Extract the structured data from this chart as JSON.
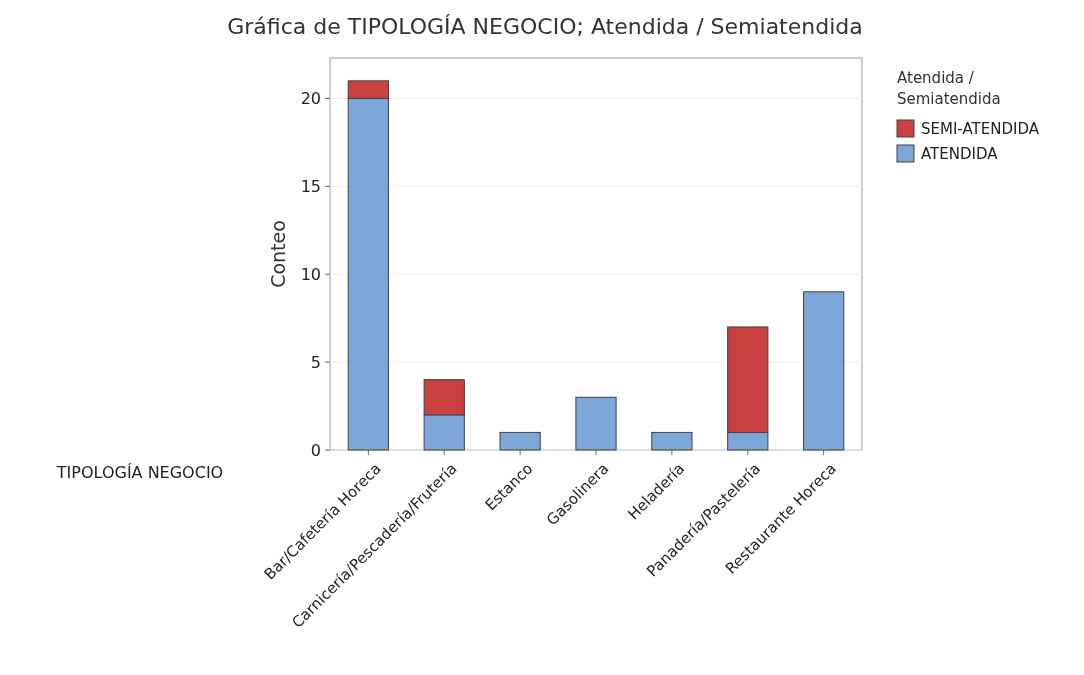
{
  "chart_data": {
    "type": "bar",
    "stacked": true,
    "title": "Gráfica de TIPOLOGÍA NEGOCIO; Atendida / Semiatendida",
    "xlabel": "TIPOLOGÍA NEGOCIO",
    "ylabel": "Conteo",
    "legend_title": "Atendida / Semiatendida",
    "legend": "top right",
    "grid": "y",
    "categories": [
      "Bar/Cafetería Horeca",
      "Carnicería/Pescadería/Frutería",
      "Estanco",
      "Gasolinera",
      "Heladería",
      "Panadería/Pastelería",
      "Restaurante Horeca"
    ],
    "series": [
      {
        "name": "ATENDIDA",
        "color": "#7da7d9",
        "values": [
          20,
          2,
          1,
          3,
          1,
          1,
          9
        ]
      },
      {
        "name": "SEMI-ATENDIDA",
        "color": "#c94040",
        "values": [
          1,
          2,
          0,
          0,
          0,
          6,
          0
        ]
      }
    ],
    "ylim": [
      0,
      22.3
    ],
    "yticks": [
      0,
      5,
      10,
      15,
      20
    ]
  }
}
